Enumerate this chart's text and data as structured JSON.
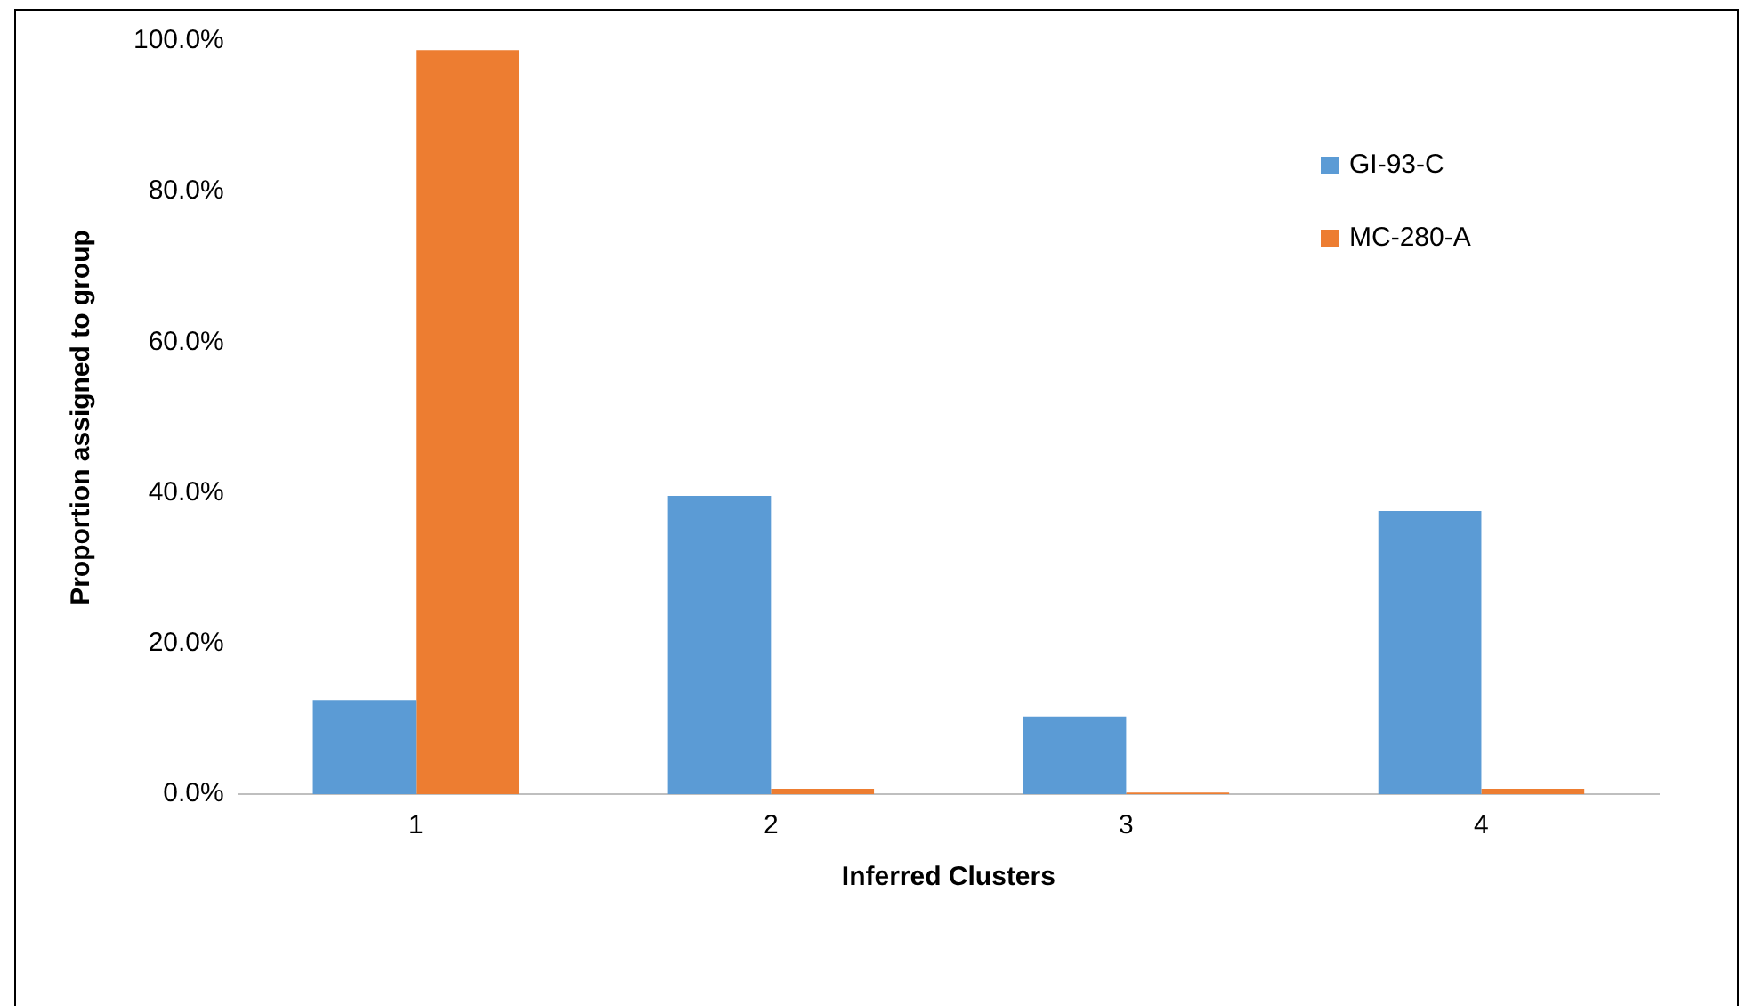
{
  "chart_data": {
    "type": "bar",
    "xlabel": "Inferred Clusters",
    "ylabel": "Proportion assigned to group",
    "categories": [
      "1",
      "2",
      "3",
      "4"
    ],
    "series": [
      {
        "name": "GI-93-C",
        "color": "#5b9bd5",
        "values": [
          12.5,
          39.6,
          10.3,
          37.6
        ]
      },
      {
        "name": "MC-280-A",
        "color": "#ed7d31",
        "values": [
          98.8,
          0.7,
          0.2,
          0.7
        ]
      }
    ],
    "ylim": [
      0,
      100
    ],
    "yticks": [
      {
        "value": 0,
        "label": "0.0%"
      },
      {
        "value": 20,
        "label": "20.0%"
      },
      {
        "value": 40,
        "label": "40.0%"
      },
      {
        "value": 60,
        "label": "60.0%"
      },
      {
        "value": 80,
        "label": "80.0%"
      },
      {
        "value": 100,
        "label": "100.0%"
      }
    ],
    "grid": false,
    "legend": "top right"
  }
}
